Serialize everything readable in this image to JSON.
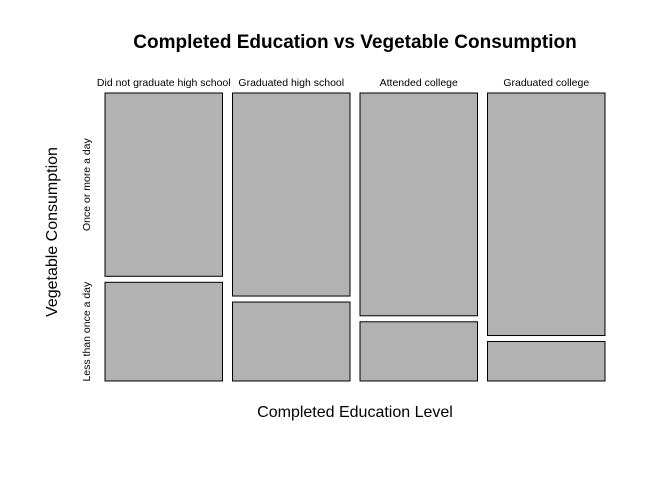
{
  "chart_data": {
    "type": "mosaic",
    "title": "Completed Education vs Vegetable Consumption",
    "xlabel": "Completed Education Level",
    "ylabel": "Vegetable Consumption",
    "categories": [
      "Did not graduate high school",
      "Graduated high school",
      "Attended college",
      "Graduated college"
    ],
    "column_widths": [
      0.25,
      0.25,
      0.25,
      0.25
    ],
    "series": [
      {
        "name": "Less than once a day",
        "values": [
          0.35,
          0.28,
          0.21,
          0.14
        ]
      },
      {
        "name": "Once or more a day",
        "values": [
          0.65,
          0.72,
          0.79,
          0.86
        ]
      }
    ],
    "ylim": [
      0,
      1
    ],
    "grid": false,
    "legend": "none",
    "colors": {
      "tile_fill": "#b2b2b2",
      "tile_stroke": "#000000",
      "background": "#ffffff"
    }
  }
}
